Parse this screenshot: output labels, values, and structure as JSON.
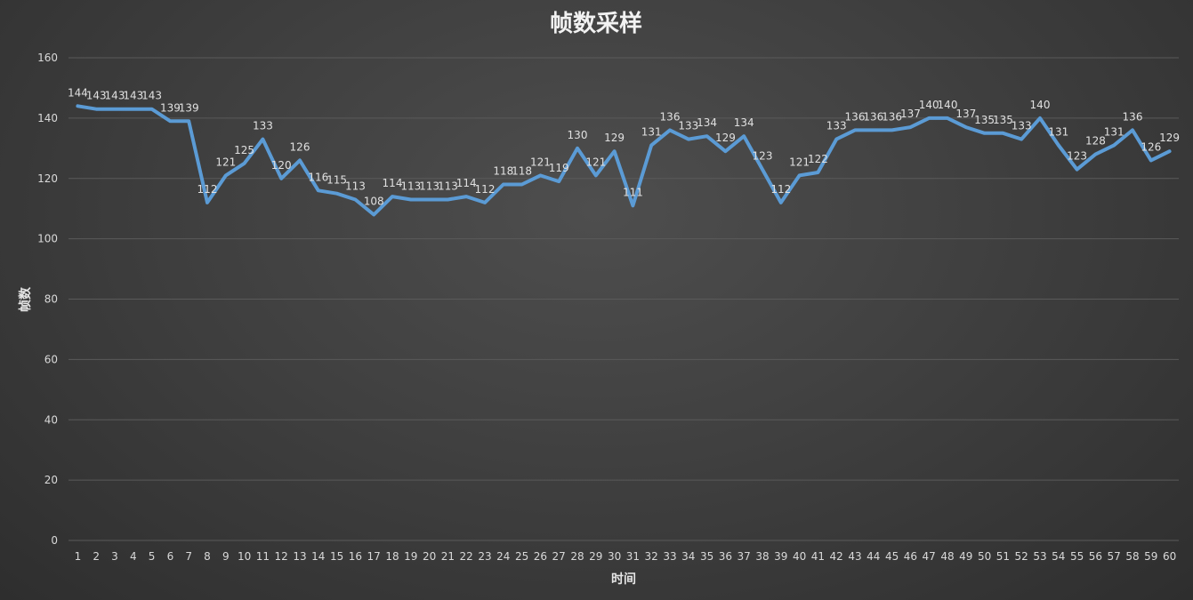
{
  "chart_data": {
    "type": "line",
    "title": "帧数采样",
    "xlabel": "时间",
    "ylabel": "帧数",
    "ylim": [
      0,
      160
    ],
    "yticks": [
      0,
      20,
      40,
      60,
      80,
      100,
      120,
      140,
      160
    ],
    "grid": true,
    "legend": "none",
    "line_color": "#5b9bd5",
    "x": [
      1,
      2,
      3,
      4,
      5,
      6,
      7,
      8,
      9,
      10,
      11,
      12,
      13,
      14,
      15,
      16,
      17,
      18,
      19,
      20,
      21,
      22,
      23,
      24,
      25,
      26,
      27,
      28,
      29,
      30,
      31,
      32,
      33,
      34,
      35,
      36,
      37,
      38,
      39,
      40,
      41,
      42,
      43,
      44,
      45,
      46,
      47,
      48,
      49,
      50,
      51,
      52,
      53,
      54,
      55,
      56,
      57,
      58,
      59,
      60
    ],
    "series": [
      {
        "values": [
          144,
          143,
          143,
          143,
          143,
          139,
          139,
          112,
          121,
          125,
          133,
          120,
          126,
          116,
          115,
          113,
          108,
          114,
          113,
          113,
          113,
          114,
          112,
          118,
          118,
          121,
          119,
          130,
          121,
          129,
          111,
          131,
          136,
          133,
          134,
          129,
          134,
          123,
          112,
          121,
          122,
          133,
          136,
          136,
          136,
          137,
          140,
          140,
          137,
          135,
          135,
          133,
          140,
          131,
          123,
          128,
          131,
          136,
          126,
          129
        ]
      }
    ]
  }
}
